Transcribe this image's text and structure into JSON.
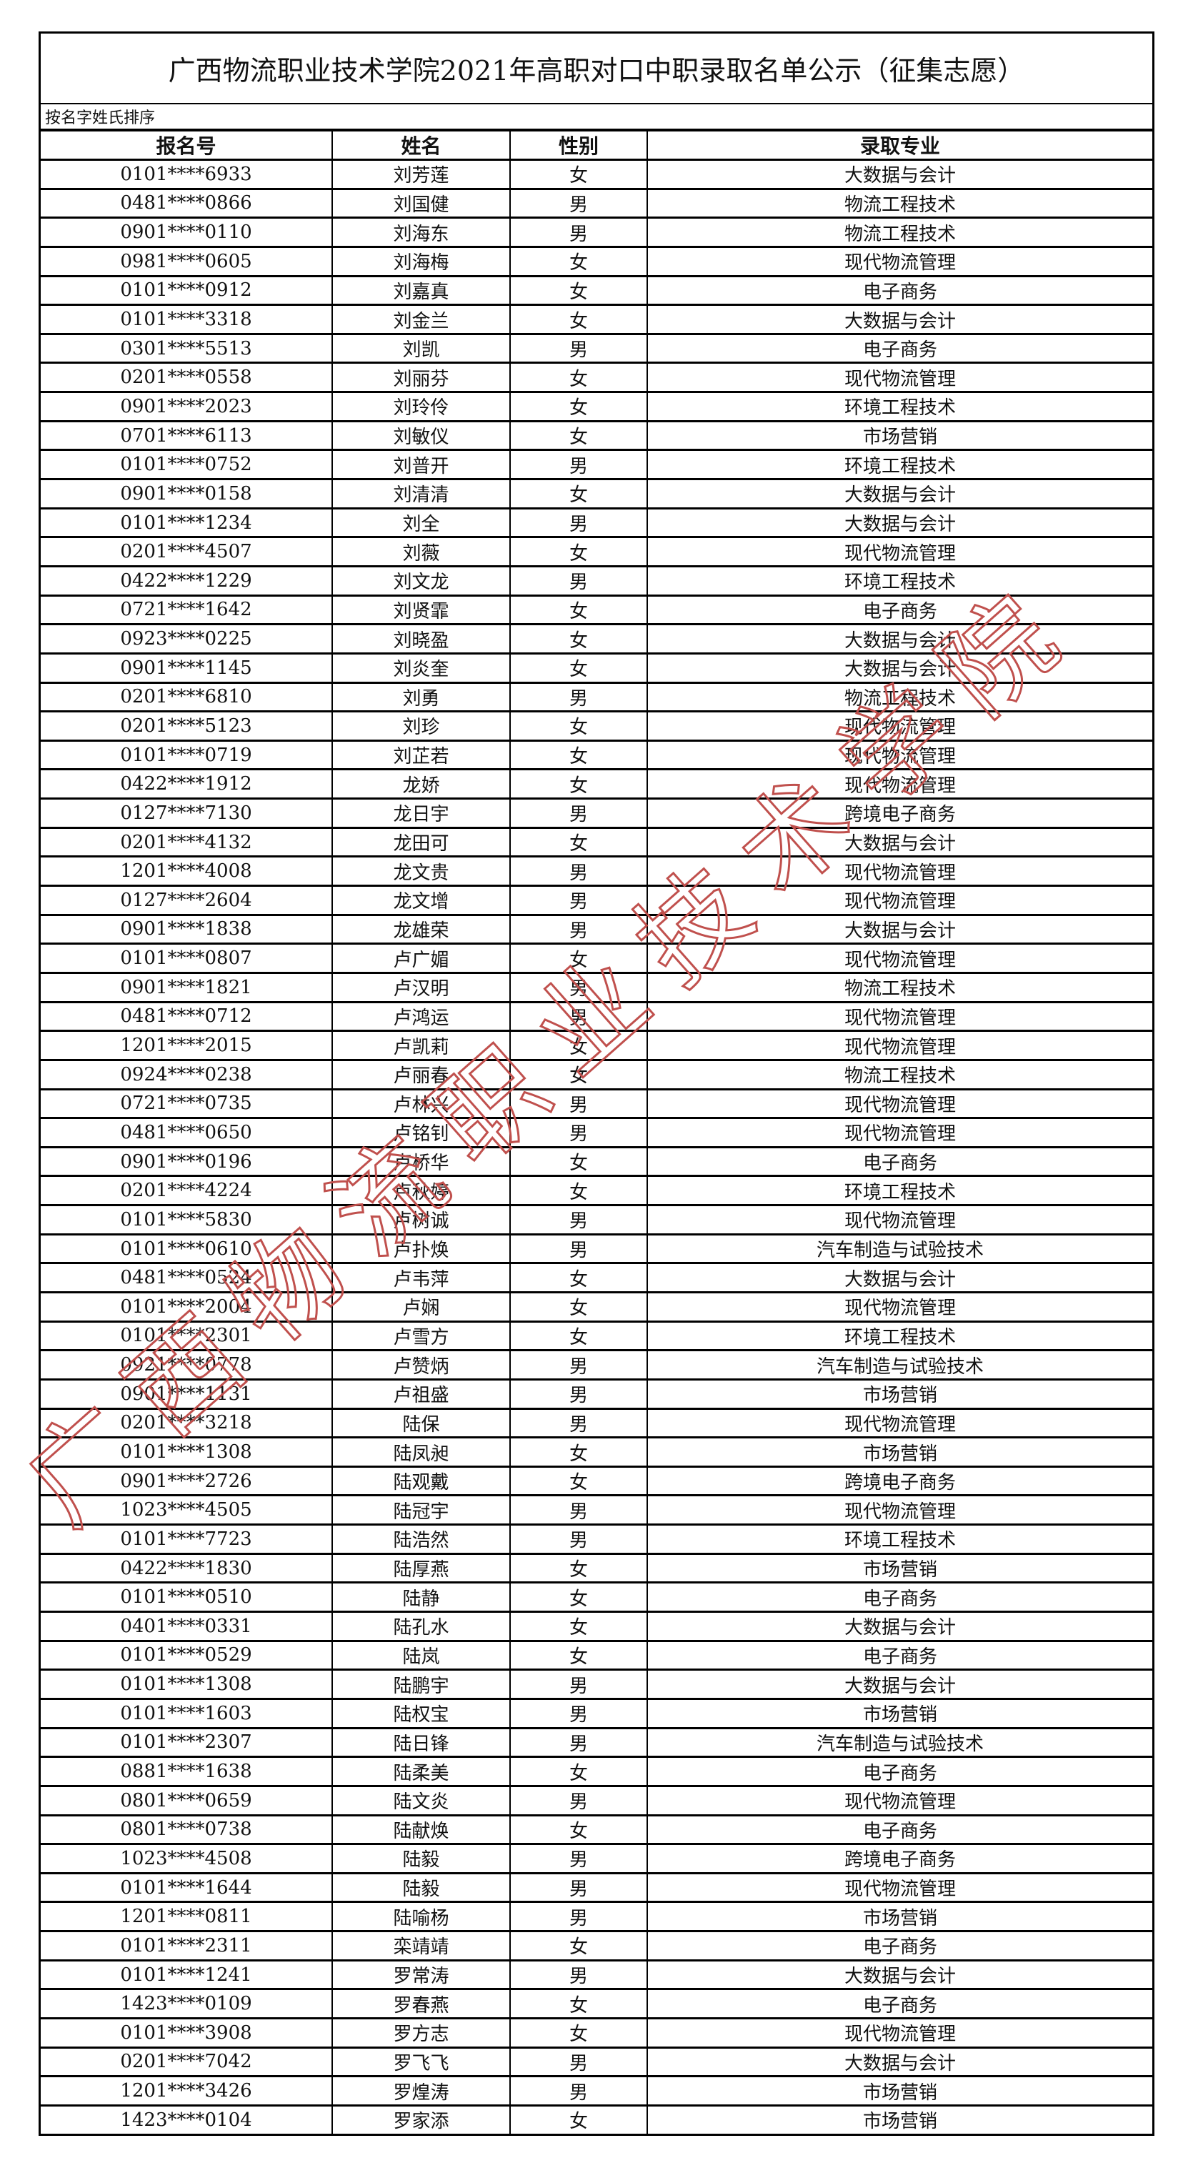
{
  "title": "广西物流职业技术学院2021年高职对口中职录取名单公示（征集志愿）",
  "subtitle": "按名字姓氏排序",
  "columns": [
    "报名号",
    "姓名",
    "性别",
    "录取专业"
  ],
  "watermark": "广西物流职业技术学院",
  "watermark_color": "#c0504d",
  "rows": [
    [
      "0101****6933",
      "刘芳莲",
      "女",
      "大数据与会计"
    ],
    [
      "0481****0866",
      "刘国健",
      "男",
      "物流工程技术"
    ],
    [
      "0901****0110",
      "刘海东",
      "男",
      "物流工程技术"
    ],
    [
      "0981****0605",
      "刘海梅",
      "女",
      "现代物流管理"
    ],
    [
      "0101****0912",
      "刘嘉真",
      "女",
      "电子商务"
    ],
    [
      "0101****3318",
      "刘金兰",
      "女",
      "大数据与会计"
    ],
    [
      "0301****5513",
      "刘凯",
      "男",
      "电子商务"
    ],
    [
      "0201****0558",
      "刘丽芬",
      "女",
      "现代物流管理"
    ],
    [
      "0901****2023",
      "刘玲伶",
      "女",
      "环境工程技术"
    ],
    [
      "0701****6113",
      "刘敏仪",
      "女",
      "市场营销"
    ],
    [
      "0101****0752",
      "刘普开",
      "男",
      "环境工程技术"
    ],
    [
      "0901****0158",
      "刘清清",
      "女",
      "大数据与会计"
    ],
    [
      "0101****1234",
      "刘全",
      "男",
      "大数据与会计"
    ],
    [
      "0201****4507",
      "刘薇",
      "女",
      "现代物流管理"
    ],
    [
      "0422****1229",
      "刘文龙",
      "男",
      "环境工程技术"
    ],
    [
      "0721****1642",
      "刘贤霏",
      "女",
      "电子商务"
    ],
    [
      "0923****0225",
      "刘晓盈",
      "女",
      "大数据与会计"
    ],
    [
      "0901****1145",
      "刘炎奎",
      "女",
      "大数据与会计"
    ],
    [
      "0201****6810",
      "刘勇",
      "男",
      "物流工程技术"
    ],
    [
      "0201****5123",
      "刘珍",
      "女",
      "现代物流管理"
    ],
    [
      "0101****0719",
      "刘芷若",
      "女",
      "现代物流管理"
    ],
    [
      "0422****1912",
      "龙娇",
      "女",
      "现代物流管理"
    ],
    [
      "0127****7130",
      "龙日宇",
      "男",
      "跨境电子商务"
    ],
    [
      "0201****4132",
      "龙田可",
      "女",
      "大数据与会计"
    ],
    [
      "1201****4008",
      "龙文贵",
      "男",
      "现代物流管理"
    ],
    [
      "0127****2604",
      "龙文增",
      "男",
      "现代物流管理"
    ],
    [
      "0901****1838",
      "龙雄荣",
      "男",
      "大数据与会计"
    ],
    [
      "0101****0807",
      "卢广媚",
      "女",
      "现代物流管理"
    ],
    [
      "0901****1821",
      "卢汉明",
      "男",
      "物流工程技术"
    ],
    [
      "0481****0712",
      "卢鸿运",
      "男",
      "现代物流管理"
    ],
    [
      "1201****2015",
      "卢凯莉",
      "女",
      "现代物流管理"
    ],
    [
      "0924****0238",
      "卢丽春",
      "女",
      "物流工程技术"
    ],
    [
      "0721****0735",
      "卢林兴",
      "男",
      "现代物流管理"
    ],
    [
      "0481****0650",
      "卢铭钊",
      "男",
      "现代物流管理"
    ],
    [
      "0901****0196",
      "卢桥华",
      "女",
      "电子商务"
    ],
    [
      "0201****4224",
      "卢秋婷",
      "女",
      "环境工程技术"
    ],
    [
      "0101****5830",
      "卢树诚",
      "男",
      "现代物流管理"
    ],
    [
      "0101****0610",
      "卢扑焕",
      "男",
      "汽车制造与试验技术"
    ],
    [
      "0481****0524",
      "卢韦萍",
      "女",
      "大数据与会计"
    ],
    [
      "0101****2004",
      "卢娴",
      "女",
      "现代物流管理"
    ],
    [
      "0101****2301",
      "卢雪方",
      "女",
      "环境工程技术"
    ],
    [
      "0921****0778",
      "卢赞炳",
      "男",
      "汽车制造与试验技术"
    ],
    [
      "0901****1131",
      "卢祖盛",
      "男",
      "市场营销"
    ],
    [
      "0201****3218",
      "陆保",
      "男",
      "现代物流管理"
    ],
    [
      "0101****1308",
      "陆凤昶",
      "女",
      "市场营销"
    ],
    [
      "0901****2726",
      "陆观戴",
      "女",
      "跨境电子商务"
    ],
    [
      "1023****4505",
      "陆冠宇",
      "男",
      "现代物流管理"
    ],
    [
      "0101****7723",
      "陆浩然",
      "男",
      "环境工程技术"
    ],
    [
      "0422****1830",
      "陆厚燕",
      "女",
      "市场营销"
    ],
    [
      "0101****0510",
      "陆静",
      "女",
      "电子商务"
    ],
    [
      "0401****0331",
      "陆孔水",
      "女",
      "大数据与会计"
    ],
    [
      "0101****0529",
      "陆岚",
      "女",
      "电子商务"
    ],
    [
      "0101****1308",
      "陆鹏宇",
      "男",
      "大数据与会计"
    ],
    [
      "0101****1603",
      "陆权宝",
      "男",
      "市场营销"
    ],
    [
      "0101****2307",
      "陆日锋",
      "男",
      "汽车制造与试验技术"
    ],
    [
      "0881****1638",
      "陆柔美",
      "女",
      "电子商务"
    ],
    [
      "0801****0659",
      "陆文炎",
      "男",
      "现代物流管理"
    ],
    [
      "0801****0738",
      "陆献焕",
      "女",
      "电子商务"
    ],
    [
      "1023****4508",
      "陆毅",
      "男",
      "跨境电子商务"
    ],
    [
      "0101****1644",
      "陆毅",
      "男",
      "现代物流管理"
    ],
    [
      "1201****0811",
      "陆喻杨",
      "男",
      "市场营销"
    ],
    [
      "0101****2311",
      "栾靖靖",
      "女",
      "电子商务"
    ],
    [
      "0101****1241",
      "罗常涛",
      "男",
      "大数据与会计"
    ],
    [
      "1423****0109",
      "罗春燕",
      "女",
      "电子商务"
    ],
    [
      "0101****3908",
      "罗方志",
      "女",
      "现代物流管理"
    ],
    [
      "0201****7042",
      "罗飞飞",
      "男",
      "大数据与会计"
    ],
    [
      "1201****3426",
      "罗煌涛",
      "男",
      "市场营销"
    ],
    [
      "1423****0104",
      "罗家添",
      "女",
      "市场营销"
    ]
  ]
}
